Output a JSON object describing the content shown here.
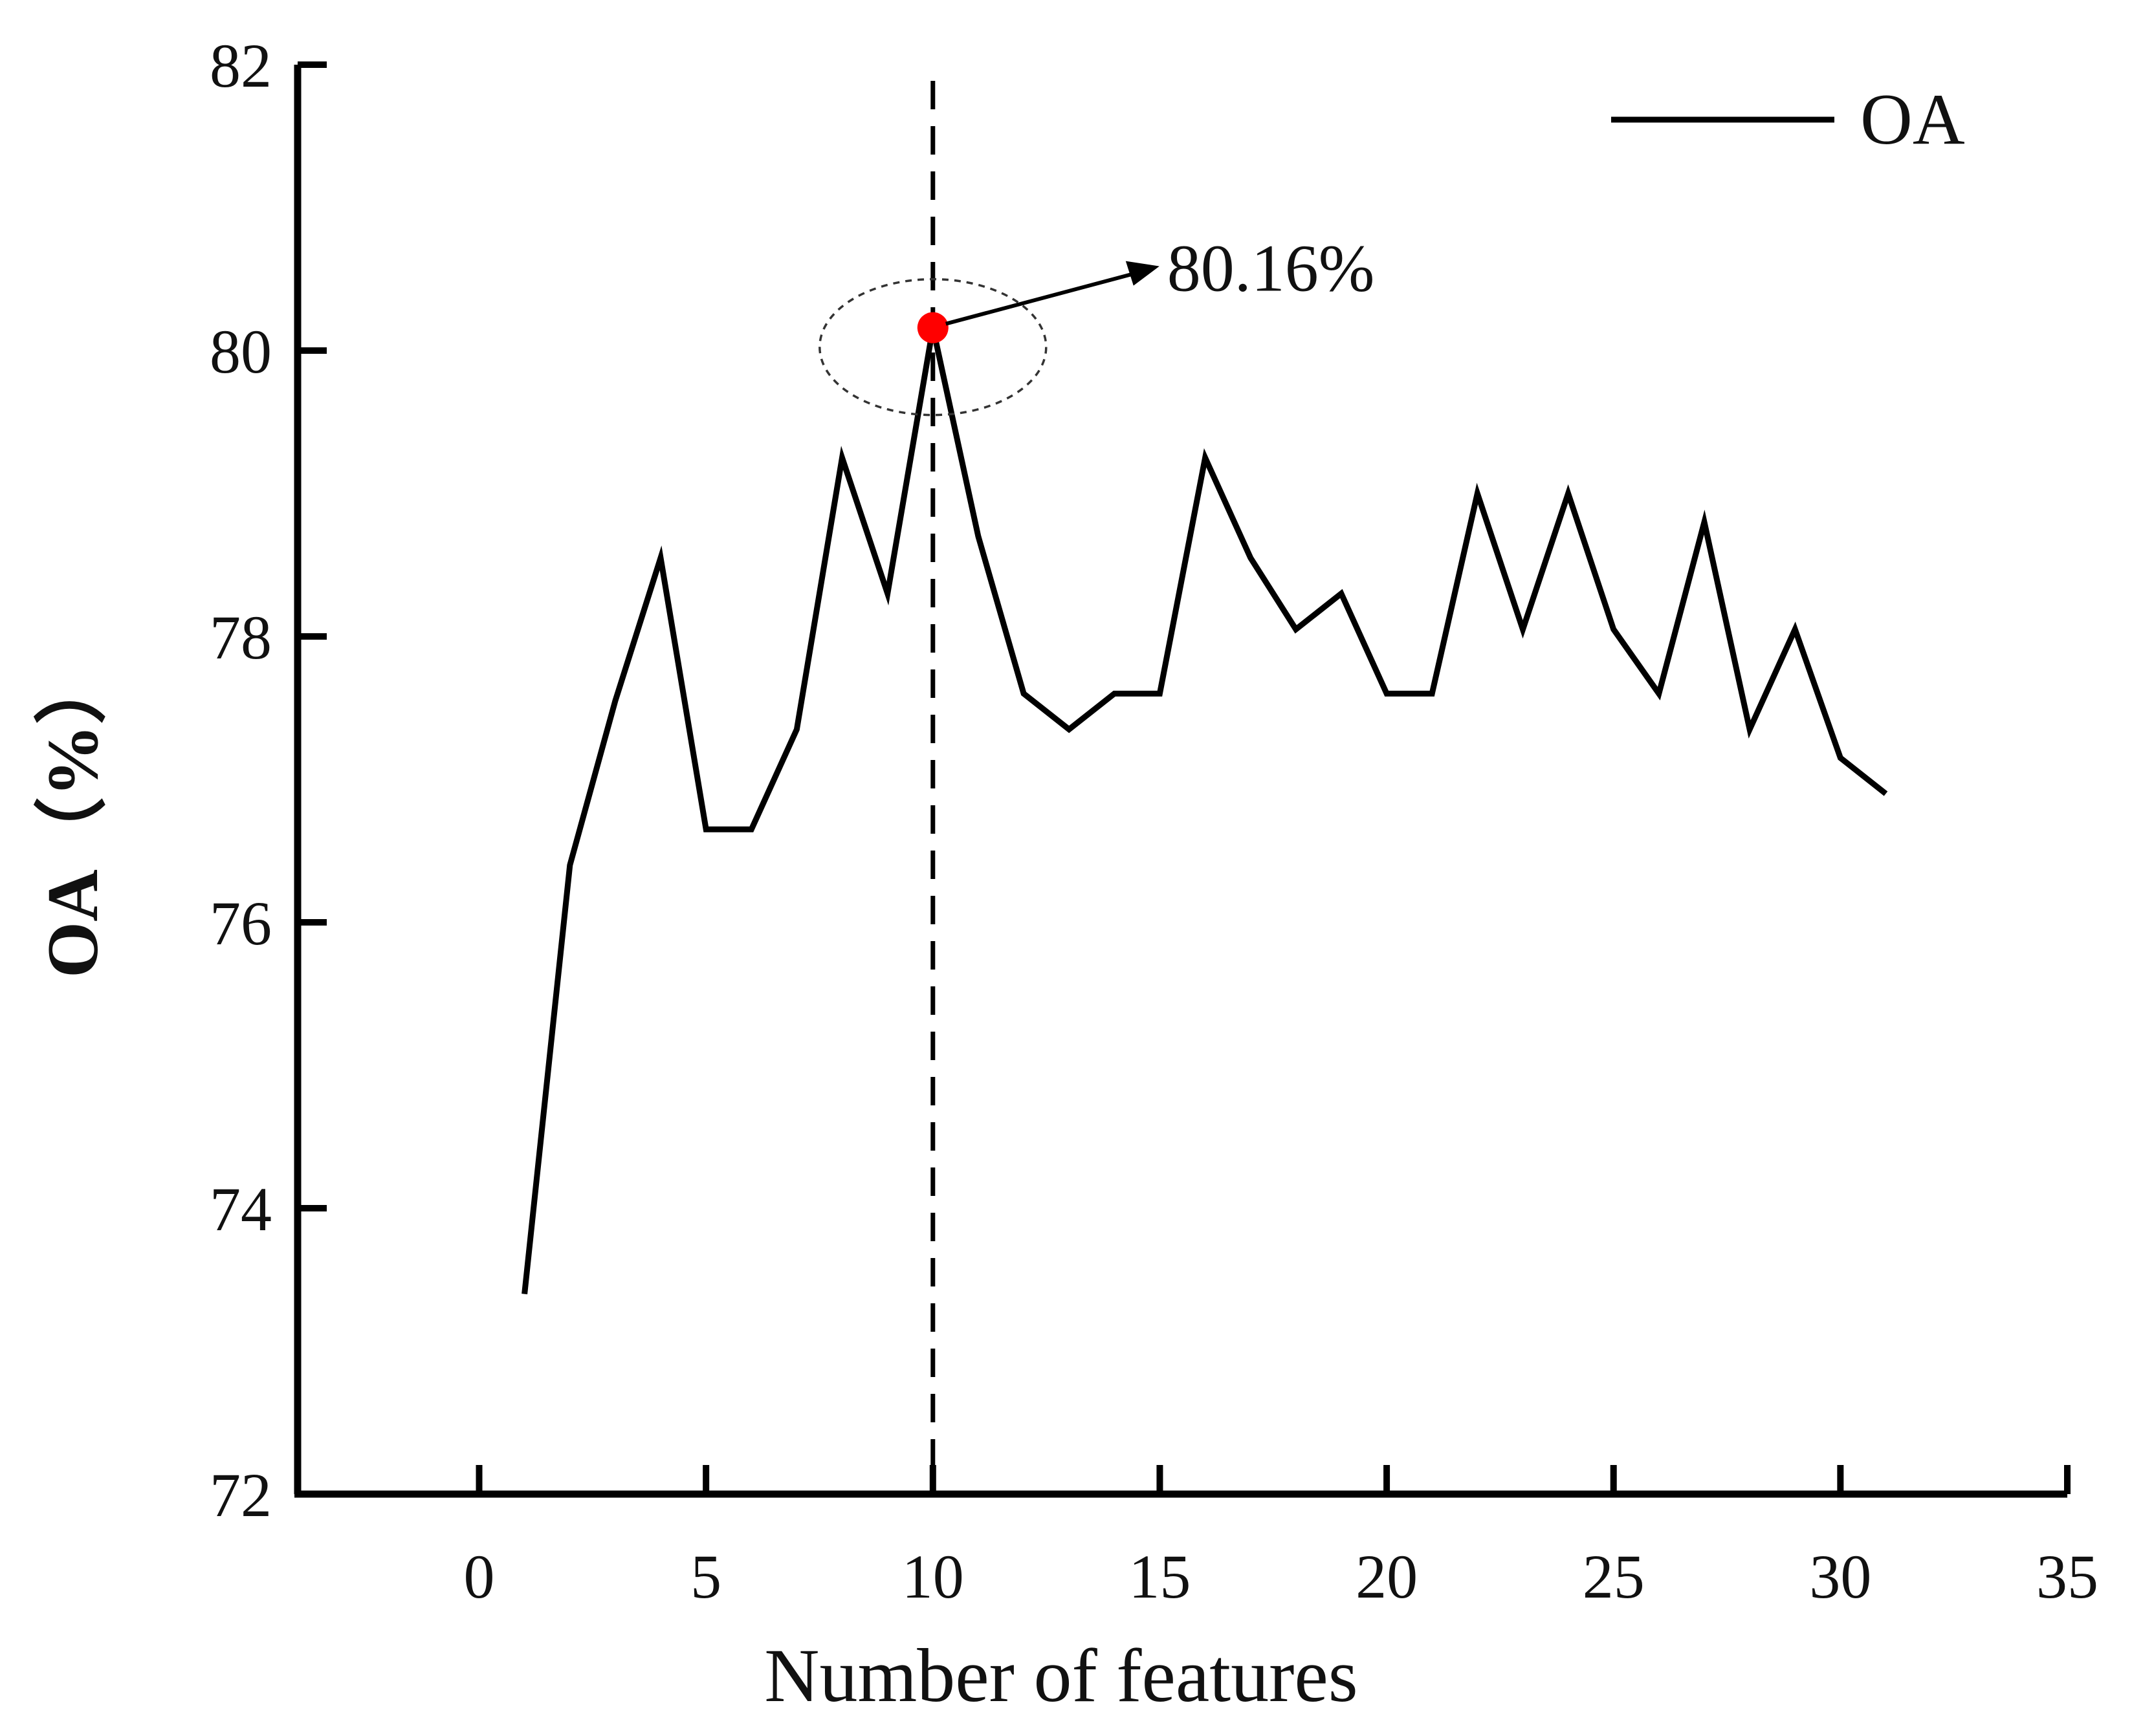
{
  "chart_data": {
    "type": "line",
    "xlabel": "Number of features",
    "ylabel": "OA（%）",
    "xlim": [
      -4,
      35
    ],
    "ylim": [
      72,
      82
    ],
    "xticks": [
      0,
      5,
      10,
      15,
      20,
      25,
      30,
      35
    ],
    "yticks": [
      72,
      74,
      76,
      78,
      80,
      82
    ],
    "grid": false,
    "legend_position": "top-right",
    "series": [
      {
        "name": "OA",
        "color": "#000000",
        "x": [
          1,
          2,
          3,
          4,
          5,
          6,
          7,
          8,
          9,
          10,
          11,
          12,
          13,
          14,
          15,
          16,
          17,
          18,
          19,
          20,
          21,
          22,
          23,
          24,
          25,
          26,
          27,
          28,
          29,
          30,
          31
        ],
        "y": [
          73.4,
          76.4,
          77.55,
          78.55,
          76.65,
          76.65,
          77.35,
          79.25,
          78.3,
          80.16,
          78.7,
          77.6,
          77.35,
          77.6,
          77.6,
          79.25,
          78.55,
          78.05,
          78.3,
          77.6,
          77.6,
          79.0,
          78.05,
          79.0,
          78.05,
          77.6,
          78.8,
          77.35,
          78.05,
          77.15,
          76.9
        ]
      }
    ],
    "annotations": [
      {
        "text": "80.16%",
        "x": 10,
        "y": 80.16,
        "marker_color": "#ff0000"
      }
    ],
    "reference_line": {
      "x": 10,
      "style": "dashed"
    }
  }
}
